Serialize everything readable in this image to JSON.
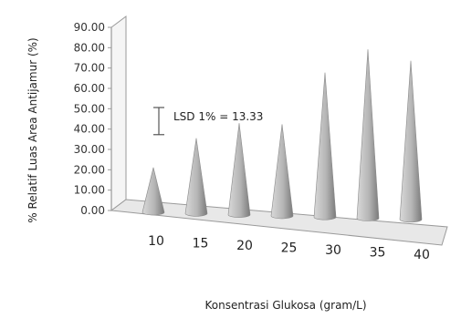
{
  "chart_data": {
    "type": "bar",
    "bar_shape": "cone",
    "categories": [
      "10",
      "15",
      "20",
      "25",
      "30",
      "35",
      "40"
    ],
    "values": [
      22,
      37,
      45,
      45,
      71,
      83,
      78
    ],
    "ylabel": "% Relatif Luas Area Antijamur (%)",
    "xlabel": "Konsentrasi Glukosa (gram/L)",
    "ylim": [
      0,
      90
    ],
    "yticks": [
      "0.00",
      "10.00",
      "20.00",
      "30.00",
      "40.00",
      "50.00",
      "60.00",
      "70.00",
      "80.00",
      "90.00"
    ],
    "annotation": {
      "text": "LSD 1% = 13.33",
      "value": 13.33
    },
    "colors": {
      "cone_light": "#d9d9d9",
      "cone_dark": "#7a7a7a",
      "floor": "#e8e8e8",
      "wall": "#f5f5f5",
      "axis": "#9a9a9a"
    },
    "grid": false,
    "legend": "none"
  }
}
